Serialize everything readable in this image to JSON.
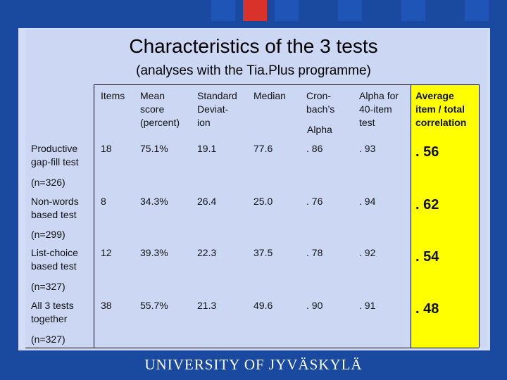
{
  "slide": {
    "title": "Characteristics of the 3 tests",
    "subtitle": "(analyses with the Tia.Plus programme)",
    "footer": "UNIVERSITY OF JYVÄSKYLÄ"
  },
  "table": {
    "headers": {
      "items": "Items",
      "mean_1": "Mean",
      "mean_2": "score",
      "mean_3": "(percent)",
      "std_1": "Standard",
      "std_2": "Deviat-",
      "std_3": "ion",
      "median": "Median",
      "cron_1": "Cron-",
      "cron_2": "bach’s",
      "cron_3": "Alpha",
      "alpha_1": "Alpha for",
      "alpha_2": "40-item",
      "alpha_3": "test",
      "avg_1": "Average",
      "avg_2": "item / total",
      "avg_3": "correlation"
    },
    "rows": [
      {
        "name_1": "Productive",
        "name_2": "gap-fill test",
        "n": "(n=326)",
        "items": "18",
        "mean": "75.1%",
        "std": "19.1",
        "median": "77.6",
        "cronbach": ". 86",
        "alpha40": ". 93",
        "corr": ". 56"
      },
      {
        "name_1": "Non-words",
        "name_2": "based test",
        "n": "(n=299)",
        "items": "8",
        "mean": "34.3%",
        "std": "26.4",
        "median": "25.0",
        "cronbach": ". 76",
        "alpha40": ". 94",
        "corr": ". 62"
      },
      {
        "name_1": "List-choice",
        "name_2": "based test",
        "n": "(n=327)",
        "items": "12",
        "mean": "39.3%",
        "std": "22.3",
        "median": "37.5",
        "cronbach": ". 78",
        "alpha40": ". 92",
        "corr": ". 54"
      },
      {
        "name_1": "All 3 tests",
        "name_2": "together",
        "n": "(n=327)",
        "items": "38",
        "mean": "55.7%",
        "std": "21.3",
        "median": "49.6",
        "cronbach": ". 90",
        "alpha40": ". 91",
        "corr": ". 48"
      }
    ]
  },
  "colors": {
    "background": "#1a49a0",
    "panel": "#ccd7f4",
    "highlight": "#ffff00",
    "accent_square": "#d9322b"
  }
}
